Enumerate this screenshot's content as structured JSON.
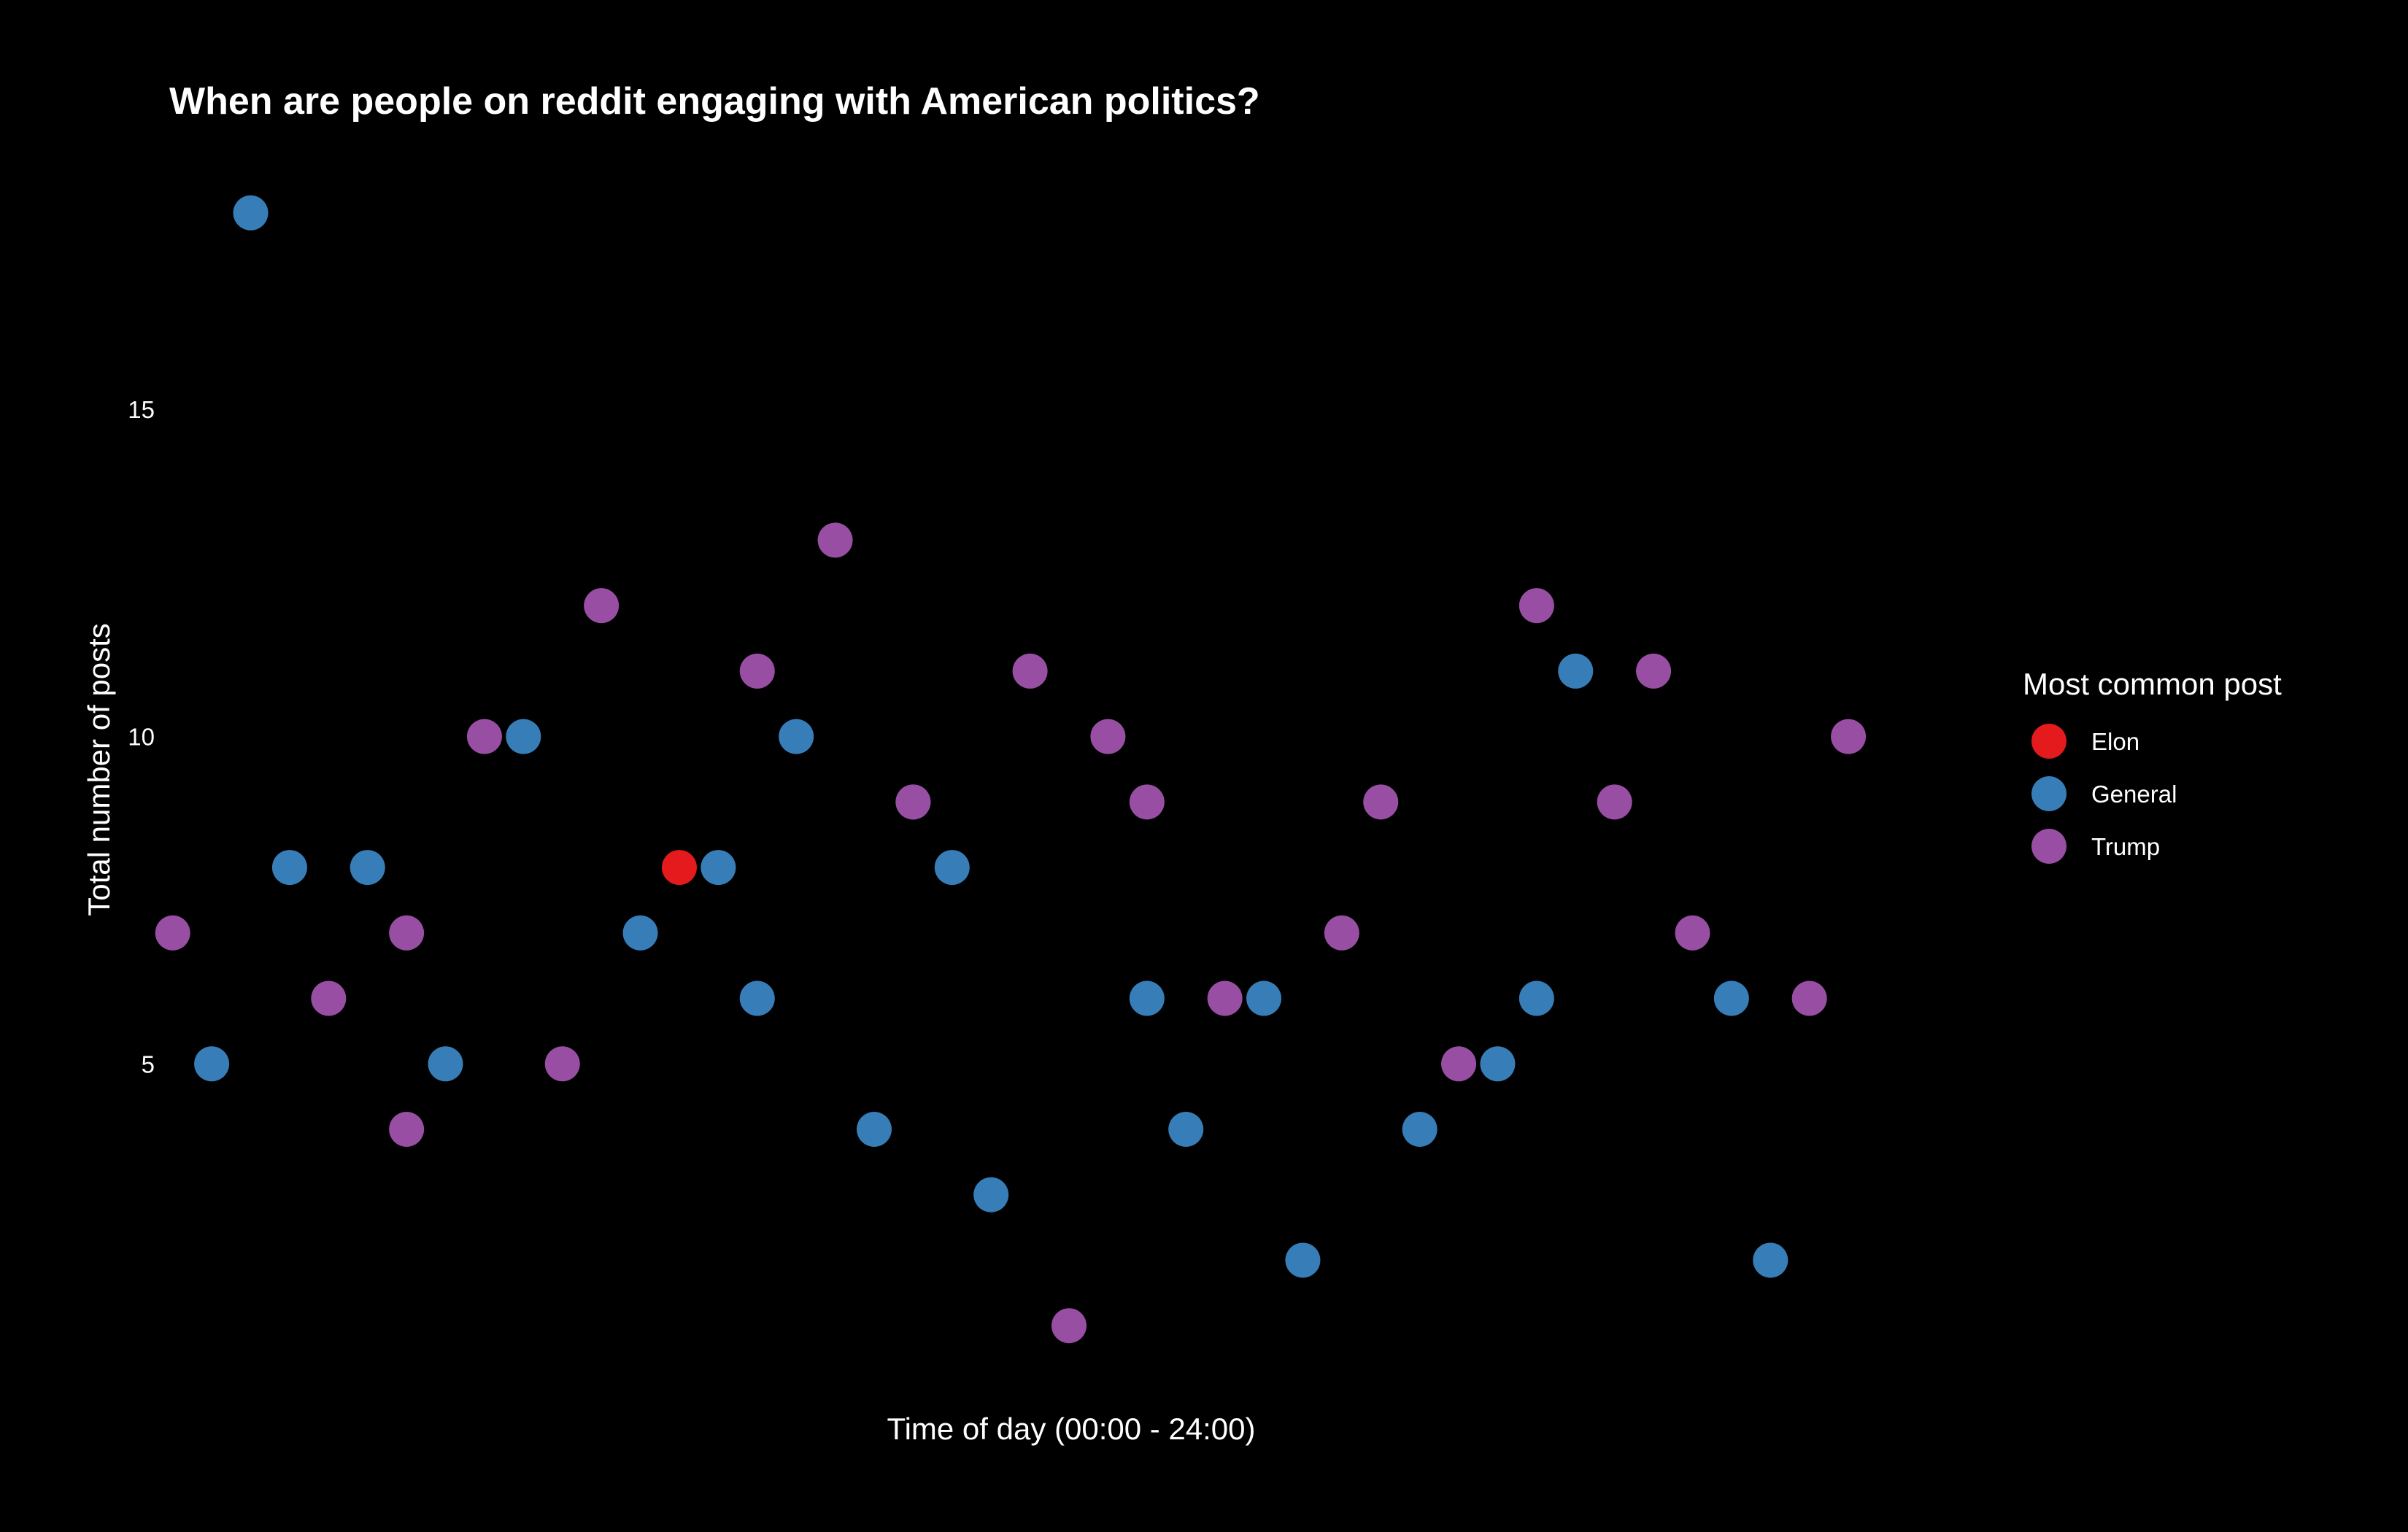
{
  "chart_data": {
    "type": "scatter",
    "title": "When are people on reddit engaging with American politics?",
    "xlabel": "Time of day (00:00 - 24:00)",
    "ylabel": "Total number of posts",
    "x_ticks_shown": false,
    "y_ticks": [
      5,
      10,
      15
    ],
    "xlim": [
      0.5,
      47.5
    ],
    "ylim": [
      0.3,
      18.8
    ],
    "grid": false,
    "legend": {
      "title": "Most common post",
      "placement": "right",
      "entries": [
        {
          "label": "Elon",
          "color": "#E41A1C"
        },
        {
          "label": "General",
          "color": "#377EB8"
        },
        {
          "label": "Trump",
          "color": "#984EA3"
        }
      ]
    },
    "series": [
      {
        "name": "Elon",
        "color": "#E41A1C",
        "points": [
          [
            14,
            8
          ]
        ]
      },
      {
        "name": "General",
        "color": "#377EB8",
        "points": [
          [
            2,
            5
          ],
          [
            3,
            18
          ],
          [
            4,
            8
          ],
          [
            6,
            8
          ],
          [
            8,
            5
          ],
          [
            10,
            10
          ],
          [
            13,
            7
          ],
          [
            15,
            8
          ],
          [
            16,
            6
          ],
          [
            17,
            10
          ],
          [
            19,
            4
          ],
          [
            20,
            9
          ],
          [
            21,
            8
          ],
          [
            22,
            3
          ],
          [
            26,
            6
          ],
          [
            27,
            4
          ],
          [
            29,
            6
          ],
          [
            30,
            2
          ],
          [
            33,
            4
          ],
          [
            35,
            5
          ],
          [
            36,
            6
          ],
          [
            37,
            11
          ],
          [
            41,
            6
          ],
          [
            42,
            2
          ]
        ]
      },
      {
        "name": "Trump",
        "color": "#984EA3",
        "points": [
          [
            1,
            7
          ],
          [
            5,
            6
          ],
          [
            7,
            7
          ],
          [
            7,
            4
          ],
          [
            9,
            10
          ],
          [
            11,
            5
          ],
          [
            12,
            12
          ],
          [
            16,
            11
          ],
          [
            18,
            13
          ],
          [
            20,
            9
          ],
          [
            23,
            11
          ],
          [
            24,
            1
          ],
          [
            25,
            10
          ],
          [
            26,
            9
          ],
          [
            28,
            6
          ],
          [
            31,
            7
          ],
          [
            32,
            9
          ],
          [
            34,
            5
          ],
          [
            36,
            12
          ],
          [
            38,
            9
          ],
          [
            39,
            11
          ],
          [
            40,
            7
          ],
          [
            43,
            6
          ],
          [
            44,
            10
          ]
        ]
      }
    ]
  }
}
